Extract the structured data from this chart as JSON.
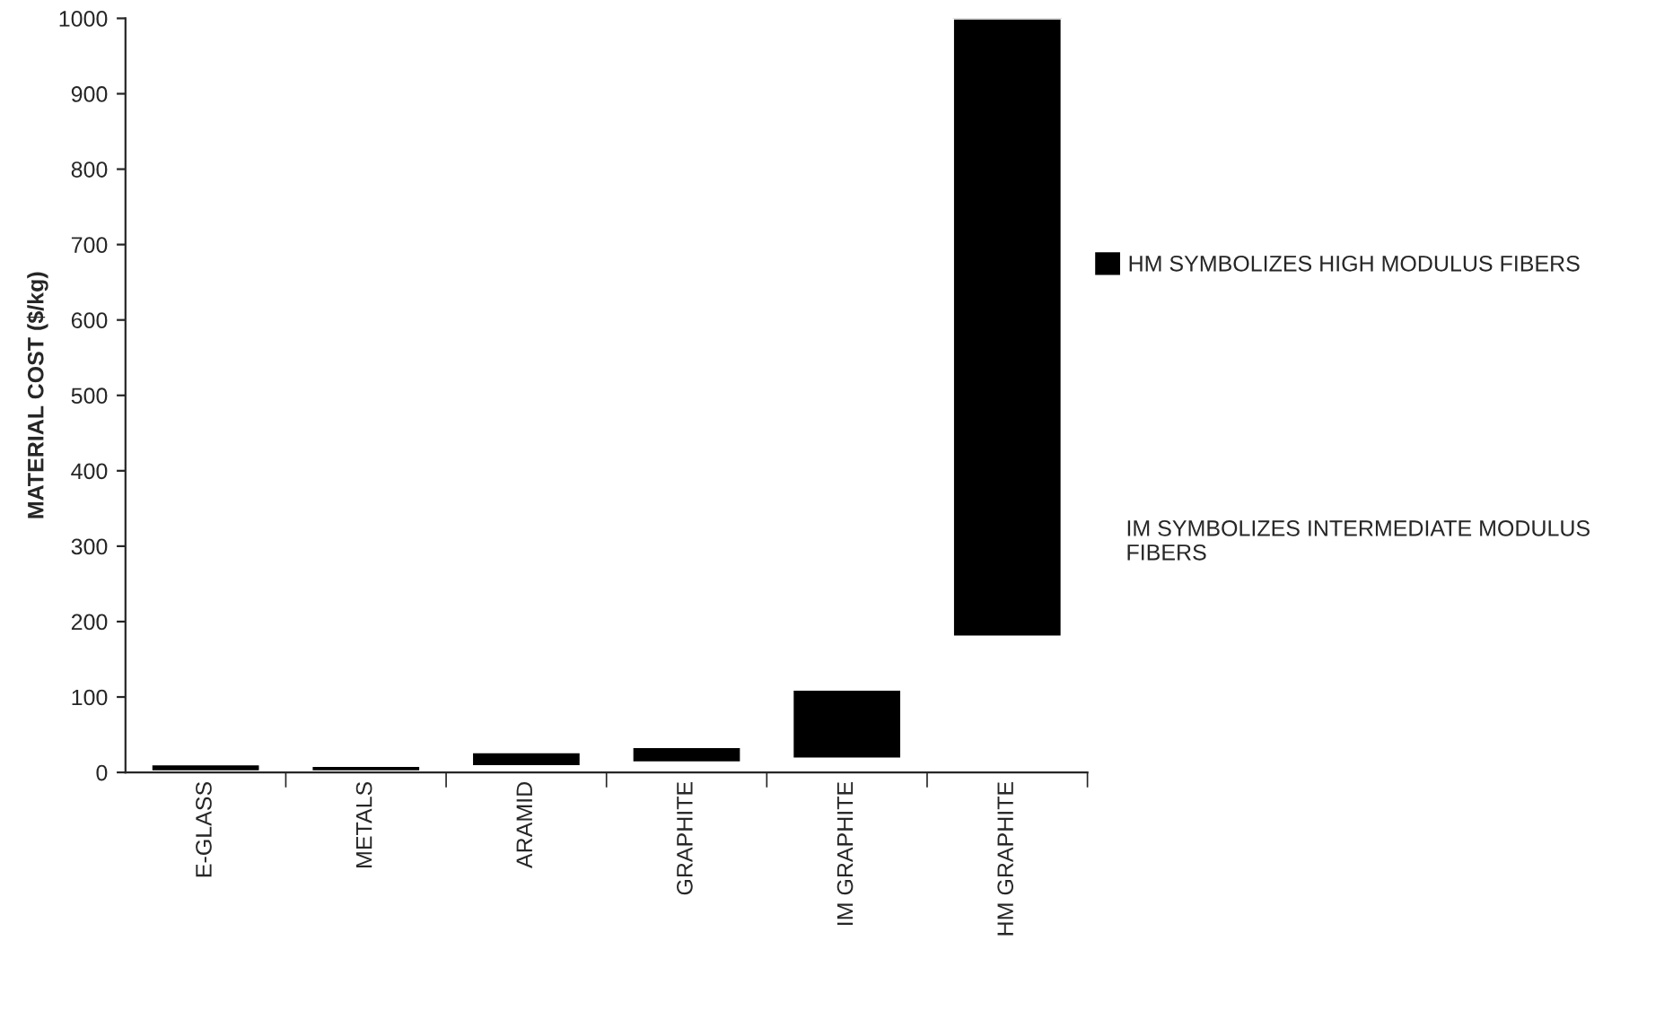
{
  "chart_data": {
    "type": "bar",
    "ylabel": "MATERIAL COST ($/kg)",
    "categories": [
      "E-GLASS",
      "METALS",
      "ARAMID",
      "GRAPHITE",
      "IM GRAPHITE",
      "HM GRAPHITE"
    ],
    "series": [
      {
        "name": "HM SYMBOLIZES HIGH MODULUS FIBERS",
        "color": "#000000",
        "values": [
          10,
          8,
          19,
          21,
          92,
          820
        ],
        "base": [
          1,
          1,
          8,
          13,
          18,
          180
        ]
      }
    ],
    "ylim": [
      0,
      1000
    ],
    "yticks": [
      0,
      100,
      200,
      300,
      400,
      500,
      600,
      700,
      800,
      900,
      1000
    ],
    "legend": "right",
    "grid": false,
    "annotations": [
      "IM SYMBOLIZES INTERMEDIATE MODULUS FIBERS"
    ]
  }
}
